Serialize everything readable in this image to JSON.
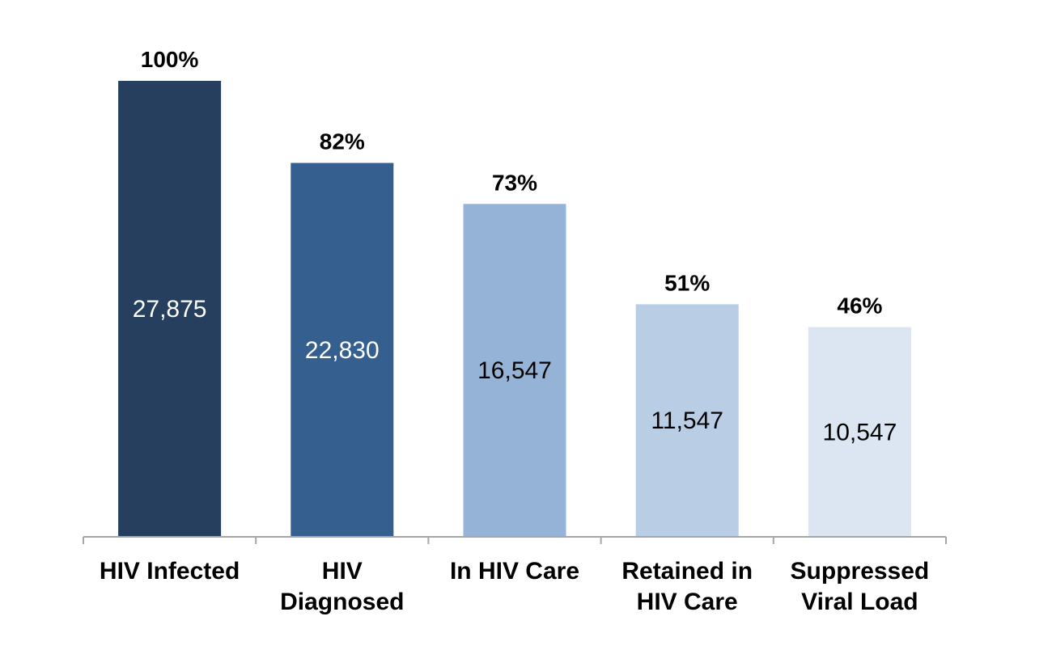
{
  "chart_data": {
    "type": "bar",
    "categories": [
      [
        "HIV Infected"
      ],
      [
        "HIV",
        "Diagnosed"
      ],
      [
        "In HIV Care"
      ],
      [
        "Retained in",
        "HIV Care"
      ],
      [
        "Suppressed",
        "Viral Load"
      ]
    ],
    "values": [
      27875,
      22830,
      16547,
      11547,
      10547
    ],
    "value_labels": [
      "27,875",
      "22,830",
      "16,547",
      "11,547",
      "10,547"
    ],
    "percent_values": [
      100,
      82,
      73,
      51,
      46
    ],
    "percent_labels": [
      "100%",
      "82%",
      "73%",
      "51%",
      "46%"
    ],
    "bar_colors": [
      "#263f5e",
      "#355f8e",
      "#95b3d7",
      "#b9cde5",
      "#dce6f2"
    ],
    "value_label_colors": [
      "#ffffff",
      "#ffffff",
      "#000000",
      "#000000",
      "#000000"
    ],
    "ylim": [
      0,
      100
    ],
    "grid": false,
    "legend": "none",
    "axis_color": "#a6a6a6"
  }
}
